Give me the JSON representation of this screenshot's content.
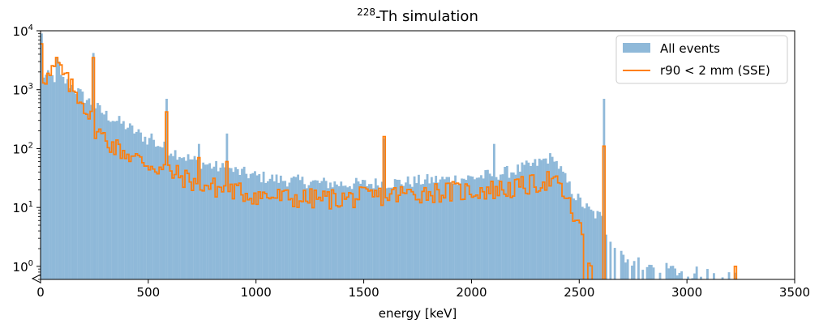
{
  "chart_data": {
    "type": "histogram",
    "title": "228-Th simulation",
    "title_mass_number": "228",
    "title_rest": "-Th simulation",
    "xlabel": "energy [keV]",
    "ylabel": "",
    "xlim": [
      0,
      3500
    ],
    "ylim": [
      0.6,
      10000
    ],
    "yscale": "log",
    "bin_width_keV": 10,
    "x_ticks": [
      0,
      500,
      1000,
      1500,
      2000,
      2500,
      3000,
      3500
    ],
    "x_tick_labels": [
      "0",
      "500",
      "1000",
      "1500",
      "2000",
      "2500",
      "3000",
      "3500"
    ],
    "y_tick_labels": [
      {
        "value": 1,
        "base": "10",
        "exp": "0"
      },
      {
        "value": 10,
        "base": "10",
        "exp": "1"
      },
      {
        "value": 100,
        "base": "10",
        "exp": "2"
      },
      {
        "value": 1000,
        "base": "10",
        "exp": "3"
      },
      {
        "value": 10000,
        "base": "10",
        "exp": "4"
      }
    ],
    "legend_position": "upper-right",
    "legend": [
      {
        "label": "All events",
        "style": "filled"
      },
      {
        "label": "r90 < 2 mm (SSE)",
        "style": "step"
      }
    ],
    "series": [
      {
        "name": "All events",
        "color": "#8fb9d9",
        "style": "filled-bars",
        "envelope_keV": [
          [
            0,
            2000
          ],
          [
            20,
            1700
          ],
          [
            60,
            1600
          ],
          [
            100,
            1500
          ],
          [
            140,
            1200
          ],
          [
            200,
            750
          ],
          [
            300,
            380
          ],
          [
            400,
            240
          ],
          [
            500,
            140
          ],
          [
            600,
            95
          ],
          [
            700,
            65
          ],
          [
            800,
            50
          ],
          [
            900,
            42
          ],
          [
            1000,
            34
          ],
          [
            1100,
            30
          ],
          [
            1200,
            28
          ],
          [
            1300,
            26
          ],
          [
            1400,
            25
          ],
          [
            1500,
            25
          ],
          [
            1600,
            26
          ],
          [
            1700,
            27
          ],
          [
            1800,
            29
          ],
          [
            1900,
            30
          ],
          [
            2000,
            32
          ],
          [
            2100,
            36
          ],
          [
            2200,
            42
          ],
          [
            2300,
            55
          ],
          [
            2360,
            70
          ],
          [
            2400,
            55
          ],
          [
            2440,
            28
          ],
          [
            2480,
            16
          ],
          [
            2520,
            11
          ],
          [
            2560,
            8
          ],
          [
            2600,
            7
          ],
          [
            2640,
            3
          ],
          [
            2700,
            1.5
          ],
          [
            2800,
            1
          ],
          [
            2900,
            0.9
          ],
          [
            3000,
            0.8
          ],
          [
            3100,
            0.75
          ],
          [
            3240,
            0.7
          ]
        ],
        "peaks": [
          {
            "energy": 0,
            "counts": 9000
          },
          {
            "energy": 70,
            "counts": 3500
          },
          {
            "energy": 80,
            "counts": 3000
          },
          {
            "energy": 240,
            "counts": 4200
          },
          {
            "energy": 510,
            "counts": 180
          },
          {
            "energy": 580,
            "counts": 700
          },
          {
            "energy": 730,
            "counts": 120
          },
          {
            "energy": 860,
            "counts": 180
          },
          {
            "energy": 1590,
            "counts": 150
          },
          {
            "energy": 2100,
            "counts": 120
          },
          {
            "energy": 2380,
            "counts": 60
          },
          {
            "energy": 2610,
            "counts": 700
          }
        ]
      },
      {
        "name": "r90 < 2 mm (SSE)",
        "color": "#ff7f0e",
        "style": "step-line",
        "envelope_keV": [
          [
            0,
            1800
          ],
          [
            40,
            1600
          ],
          [
            60,
            2200
          ],
          [
            80,
            2800
          ],
          [
            120,
            1400
          ],
          [
            200,
            600
          ],
          [
            260,
            200
          ],
          [
            340,
            110
          ],
          [
            450,
            65
          ],
          [
            600,
            40
          ],
          [
            700,
            28
          ],
          [
            800,
            22
          ],
          [
            900,
            19
          ],
          [
            1000,
            16
          ],
          [
            1200,
            14
          ],
          [
            1400,
            14
          ],
          [
            1600,
            16
          ],
          [
            1800,
            18
          ],
          [
            2000,
            19
          ],
          [
            2200,
            21
          ],
          [
            2300,
            25
          ],
          [
            2360,
            30
          ],
          [
            2420,
            20
          ],
          [
            2470,
            8
          ],
          [
            2520,
            3
          ],
          [
            2560,
            1
          ],
          [
            2600,
            0.5
          ]
        ],
        "peaks": [
          {
            "energy": 0,
            "counts": 6000
          },
          {
            "energy": 70,
            "counts": 3500
          },
          {
            "energy": 240,
            "counts": 3500
          },
          {
            "energy": 580,
            "counts": 420
          },
          {
            "energy": 730,
            "counts": 70
          },
          {
            "energy": 860,
            "counts": 60
          },
          {
            "energy": 1590,
            "counts": 160
          },
          {
            "energy": 2610,
            "counts": 110
          },
          {
            "energy": 3220,
            "counts": 1
          }
        ]
      }
    ]
  }
}
